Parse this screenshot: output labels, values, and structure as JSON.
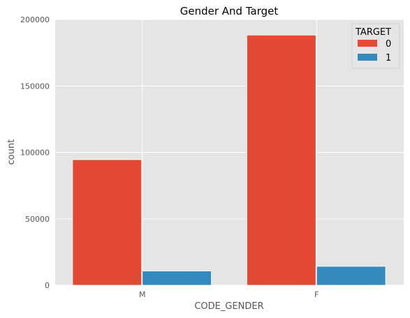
{
  "chart_data": {
    "type": "bar",
    "title": "Gender And Target",
    "xlabel": "CODE_GENDER",
    "ylabel": "count",
    "categories": [
      "M",
      "F"
    ],
    "ylim": [
      0,
      200000
    ],
    "yticks": [
      0,
      50000,
      100000,
      150000,
      200000
    ],
    "ytick_labels": [
      "0",
      "50000",
      "100000",
      "150000",
      "200000"
    ],
    "grid": true,
    "legend": {
      "title": "TARGET",
      "placement": "top-right"
    },
    "series": [
      {
        "name": "0",
        "color": "#E24A33",
        "values": [
          94500,
          188300
        ]
      },
      {
        "name": "1",
        "color": "#348ABD",
        "values": [
          10700,
          14200
        ]
      }
    ]
  }
}
